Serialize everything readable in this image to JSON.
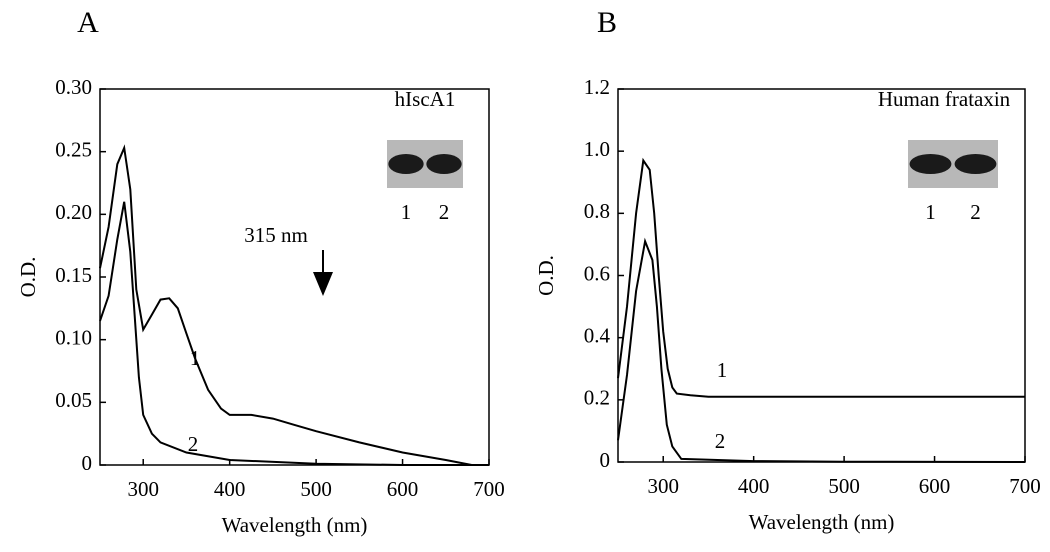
{
  "chart_data": [
    {
      "type": "line",
      "panel": "A",
      "inset_title": "hIscA1",
      "inset_lanes": [
        "1",
        "2"
      ],
      "annotation": "315 nm",
      "x_label": "Wavelength (nm)",
      "y_label": "O.D.",
      "xlim": [
        250,
        700
      ],
      "xticks": [
        300,
        400,
        500,
        600,
        700
      ],
      "ylim": [
        0,
        0.3
      ],
      "yticks": [
        0,
        0.05,
        {
          "value": 0.1,
          "label": "0.10"
        },
        0.15,
        {
          "value": 0.2,
          "label": "0.20"
        },
        0.25,
        {
          "value": 0.3,
          "label": "0.30"
        }
      ],
      "series": [
        {
          "name": "1",
          "color": "#000000",
          "x": [
            250,
            260,
            270,
            278,
            285,
            292,
            300,
            310,
            320,
            330,
            340,
            350,
            360,
            375,
            390,
            400,
            425,
            450,
            475,
            500,
            550,
            600,
            650,
            680,
            700
          ],
          "values": [
            0.157,
            0.19,
            0.24,
            0.253,
            0.22,
            0.14,
            0.108,
            0.12,
            0.132,
            0.133,
            0.125,
            0.105,
            0.085,
            0.06,
            0.045,
            0.04,
            0.04,
            0.037,
            0.032,
            0.027,
            0.018,
            0.01,
            0.004,
            0.0,
            0.0
          ]
        },
        {
          "name": "2",
          "color": "#000000",
          "x": [
            250,
            260,
            270,
            278,
            285,
            290,
            295,
            300,
            310,
            320,
            350,
            400,
            500,
            600,
            700
          ],
          "values": [
            0.115,
            0.135,
            0.18,
            0.21,
            0.17,
            0.12,
            0.07,
            0.04,
            0.025,
            0.018,
            0.01,
            0.004,
            0.001,
            0.0,
            0.0
          ]
        }
      ]
    },
    {
      "type": "line",
      "panel": "B",
      "inset_title": "Human frataxin",
      "inset_lanes": [
        "1",
        "2"
      ],
      "x_label": "Wavelength (nm)",
      "y_label": "O.D.",
      "xlim": [
        250,
        700
      ],
      "xticks": [
        300,
        400,
        500,
        600,
        700
      ],
      "ylim": [
        0,
        1.2
      ],
      "yticks": [
        0,
        0.2,
        0.4,
        0.6,
        0.8,
        {
          "value": 1.0,
          "label": "1.0"
        },
        1.2
      ],
      "series": [
        {
          "name": "1",
          "color": "#000000",
          "x": [
            250,
            260,
            270,
            278,
            285,
            290,
            295,
            300,
            305,
            310,
            315,
            330,
            350,
            400,
            500,
            600,
            700
          ],
          "values": [
            0.27,
            0.5,
            0.8,
            0.97,
            0.94,
            0.8,
            0.6,
            0.42,
            0.3,
            0.24,
            0.22,
            0.215,
            0.21,
            0.21,
            0.21,
            0.21,
            0.21
          ]
        },
        {
          "name": "2",
          "color": "#000000",
          "x": [
            250,
            260,
            270,
            280,
            288,
            293,
            298,
            304,
            310,
            320,
            400,
            500,
            700
          ],
          "values": [
            0.07,
            0.28,
            0.55,
            0.71,
            0.65,
            0.5,
            0.3,
            0.12,
            0.05,
            0.01,
            0.003,
            0.001,
            0.0
          ]
        }
      ]
    }
  ]
}
